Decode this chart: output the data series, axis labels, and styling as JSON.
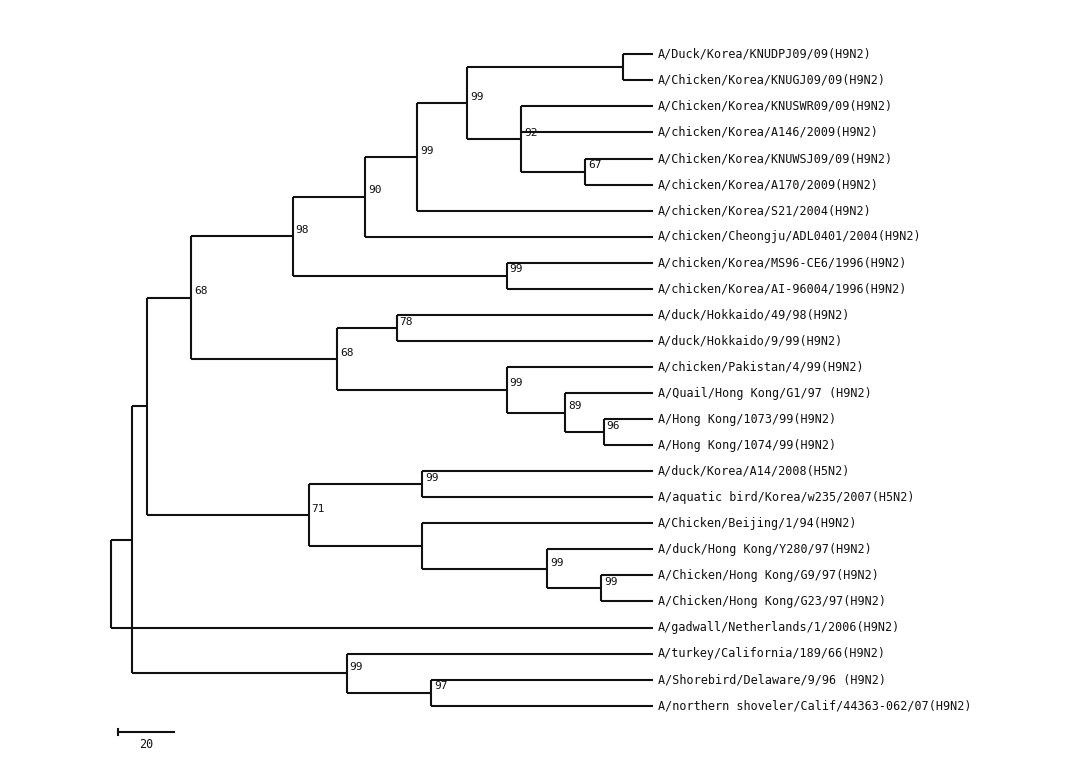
{
  "background_color": "#ffffff",
  "line_color": "#111111",
  "line_width": 1.5,
  "font_size": 8.5,
  "bootstrap_font_size": 8.0,
  "leaves": [
    "A/Duck/Korea/KNUDPJ09/09(H9N2)",
    "A/Chicken/Korea/KNUGJ09/09(H9N2)",
    "A/Chicken/Korea/KNUSWR09/09(H9N2)",
    "A/chicken/Korea/A146/2009(H9N2)",
    "A/Chicken/Korea/KNUWSJ09/09(H9N2)",
    "A/chicken/Korea/A170/2009(H9N2)",
    "A/chicken/Korea/S21/2004(H9N2)",
    "A/chicken/Cheongju/ADL0401/2004(H9N2)",
    "A/chicken/Korea/MS96-CE6/1996(H9N2)",
    "A/chicken/Korea/AI-96004/1996(H9N2)",
    "A/duck/Hokkaido/49/98(H9N2)",
    "A/duck/Hokkaido/9/99(H9N2)",
    "A/chicken/Pakistan/4/99(H9N2)",
    "A/Quail/Hong Kong/G1/97 (H9N2)",
    "A/Hong Kong/1073/99(H9N2)",
    "A/Hong Kong/1074/99(H9N2)",
    "A/duck/Korea/A14/2008(H5N2)",
    "A/aquatic bird/Korea/w235/2007(H5N2)",
    "A/Chicken/Beijing/1/94(H9N2)",
    "A/duck/Hong Kong/Y280/97(H9N2)",
    "A/Chicken/Hong Kong/G9/97(H9N2)",
    "A/Chicken/Hong Kong/G23/97(H9N2)",
    "A/gadwall/Netherlands/1/2006(H9N2)",
    "A/turkey/California/189/66(H9N2)",
    "A/Shorebird/Delaware/9/96 (H9N2)",
    "A/northern shoveler/Calif/44363-062/07(H9N2)"
  ],
  "scale_bar_label": "20"
}
